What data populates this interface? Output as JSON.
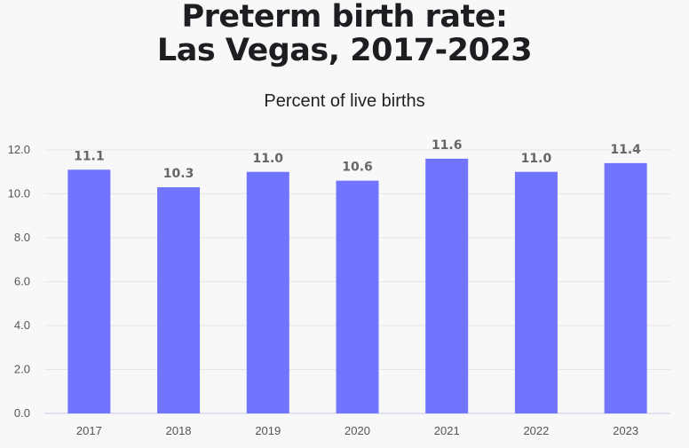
{
  "chart_data": {
    "type": "bar",
    "title_lines": [
      "Preterm birth rate:",
      "Las Vegas, 2017-2023"
    ],
    "subtitle": "Percent of live births",
    "categories": [
      "2017",
      "2018",
      "2019",
      "2020",
      "2021",
      "2022",
      "2023"
    ],
    "values": [
      11.1,
      10.3,
      11.0,
      10.6,
      11.6,
      11.0,
      11.4
    ],
    "data_labels": [
      "11.1",
      "10.3",
      "11.0",
      "10.6",
      "11.6",
      "11.0",
      "11.4"
    ],
    "y_ticks": [
      "0.0",
      "2.0",
      "4.0",
      "6.0",
      "8.0",
      "10.0",
      "12.0"
    ],
    "ylim": [
      0,
      12
    ],
    "grid": true,
    "bar_color": "#7175fe"
  }
}
